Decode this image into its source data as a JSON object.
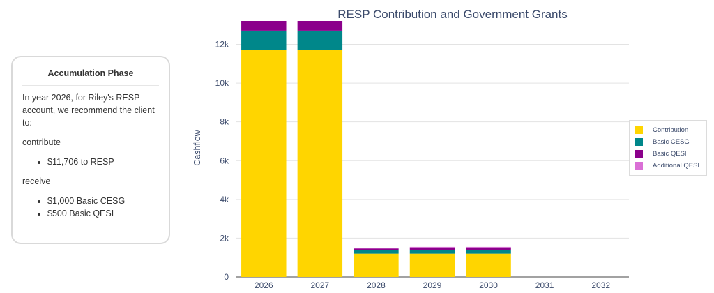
{
  "card": {
    "title": "Accumulation Phase",
    "intro": "In year 2026, for Riley's RESP account, we recommend the client to:",
    "contribute_label": "contribute",
    "contribute_items": [
      "$11,706 to RESP"
    ],
    "receive_label": "receive",
    "receive_items": [
      "$1,000 Basic CESG",
      "$500 Basic QESI"
    ]
  },
  "chart_data": {
    "type": "bar",
    "stacked": true,
    "title": "RESP Contribution and Government Grants",
    "xlabel": "",
    "ylabel": "Cashflow",
    "categories": [
      "2026",
      "2027",
      "2028",
      "2029",
      "2030",
      "2031",
      "2032"
    ],
    "series": [
      {
        "name": "Contribution",
        "color": "#FFD500",
        "values": [
          11706,
          11706,
          1200,
          1200,
          1200,
          0,
          0
        ]
      },
      {
        "name": "Basic CESG",
        "color": "#00878A",
        "values": [
          1000,
          1000,
          200,
          200,
          200,
          0,
          0
        ]
      },
      {
        "name": "Basic QESI",
        "color": "#8B008B",
        "values": [
          500,
          500,
          60,
          120,
          120,
          0,
          0
        ]
      },
      {
        "name": "Additional QESI",
        "color": "#DA70D6",
        "values": [
          0,
          0,
          30,
          30,
          30,
          0,
          0
        ]
      }
    ],
    "yticks": [
      0,
      2000,
      4000,
      6000,
      8000,
      10000,
      12000
    ],
    "ytick_labels": [
      "0",
      "2k",
      "4k",
      "6k",
      "8k",
      "10k",
      "12k"
    ],
    "ylim": [
      0,
      13206
    ],
    "grid": true,
    "legend_position": "right"
  }
}
